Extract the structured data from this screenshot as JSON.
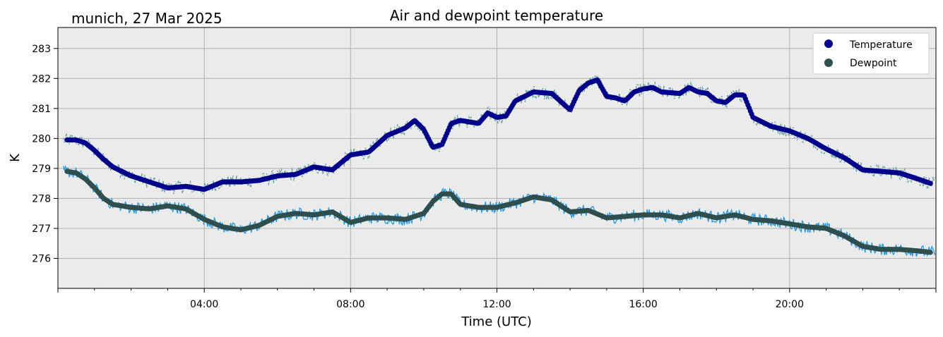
{
  "chart_data": {
    "type": "line",
    "title": "Air and dewpoint temperature",
    "subtitle": "munich, 27 Mar 2025",
    "xlabel": "Time (UTC)",
    "ylabel": "K",
    "xlim": [
      0,
      24
    ],
    "ylim": [
      275,
      283.7
    ],
    "grid": true,
    "legend_position": "top-right",
    "x_ticks": [
      {
        "x": 4,
        "label": "04:00"
      },
      {
        "x": 8,
        "label": "08:00"
      },
      {
        "x": 12,
        "label": "12:00"
      },
      {
        "x": 16,
        "label": "16:00"
      },
      {
        "x": 20,
        "label": "20:00"
      }
    ],
    "y_ticks": [
      276,
      277,
      278,
      279,
      280,
      281,
      282,
      283
    ],
    "series": [
      {
        "name": "Temperature",
        "color": "#00008b",
        "raw_color": "#5f9ea0",
        "x": [
          0.25,
          0.5,
          0.75,
          1.0,
          1.25,
          1.5,
          2.0,
          2.5,
          3.0,
          3.5,
          4.0,
          4.5,
          5.0,
          5.5,
          6.0,
          6.5,
          7.0,
          7.5,
          8.0,
          8.5,
          9.0,
          9.5,
          9.75,
          10.0,
          10.25,
          10.5,
          10.75,
          11.0,
          11.5,
          11.75,
          12.0,
          12.25,
          12.5,
          13.0,
          13.5,
          14.0,
          14.25,
          14.5,
          14.75,
          15.0,
          15.25,
          15.5,
          15.75,
          16.0,
          16.25,
          16.5,
          17.0,
          17.25,
          17.5,
          17.75,
          18.0,
          18.25,
          18.5,
          18.75,
          19.0,
          19.5,
          20.0,
          20.5,
          21.0,
          21.5,
          22.0,
          22.5,
          23.0,
          23.5,
          23.85
        ],
        "values": [
          279.95,
          279.95,
          279.85,
          279.6,
          279.3,
          279.05,
          278.75,
          278.55,
          278.35,
          278.4,
          278.3,
          278.55,
          278.55,
          278.6,
          278.75,
          278.8,
          279.05,
          278.95,
          279.45,
          279.55,
          280.1,
          280.35,
          280.6,
          280.3,
          279.7,
          279.8,
          280.5,
          280.6,
          280.5,
          280.85,
          280.7,
          280.75,
          281.25,
          281.55,
          281.5,
          280.95,
          281.6,
          281.85,
          281.95,
          281.4,
          281.35,
          281.25,
          281.55,
          281.65,
          281.7,
          281.55,
          281.5,
          281.7,
          281.55,
          281.5,
          281.25,
          281.2,
          281.45,
          281.45,
          280.7,
          280.4,
          280.25,
          280.0,
          279.65,
          279.35,
          278.95,
          278.9,
          278.85,
          278.65,
          278.5
        ]
      },
      {
        "name": "Dewpoint",
        "color": "#2f4f4f",
        "raw_color": "#1e9ae8",
        "x": [
          0.25,
          0.5,
          0.75,
          1.0,
          1.25,
          1.5,
          2.0,
          2.5,
          3.0,
          3.5,
          4.0,
          4.5,
          5.0,
          5.5,
          6.0,
          6.5,
          7.0,
          7.5,
          8.0,
          8.5,
          9.0,
          9.5,
          10.0,
          10.25,
          10.5,
          10.75,
          11.0,
          11.5,
          12.0,
          12.5,
          13.0,
          13.5,
          14.0,
          14.5,
          15.0,
          15.5,
          16.0,
          16.5,
          17.0,
          17.5,
          18.0,
          18.5,
          19.0,
          19.5,
          20.0,
          20.5,
          21.0,
          21.5,
          22.0,
          22.5,
          23.0,
          23.5,
          23.85
        ],
        "values": [
          278.9,
          278.85,
          278.65,
          278.35,
          278.0,
          277.8,
          277.7,
          277.65,
          277.75,
          277.65,
          277.3,
          277.05,
          276.95,
          277.1,
          277.4,
          277.5,
          277.45,
          277.55,
          277.2,
          277.35,
          277.35,
          277.3,
          277.5,
          277.9,
          278.15,
          278.15,
          277.8,
          277.7,
          277.7,
          277.85,
          278.05,
          277.95,
          277.55,
          277.6,
          277.35,
          277.4,
          277.45,
          277.45,
          277.35,
          277.5,
          277.35,
          277.45,
          277.3,
          277.25,
          277.15,
          277.05,
          277.0,
          276.75,
          276.4,
          276.3,
          276.3,
          276.25,
          276.2
        ]
      }
    ]
  }
}
